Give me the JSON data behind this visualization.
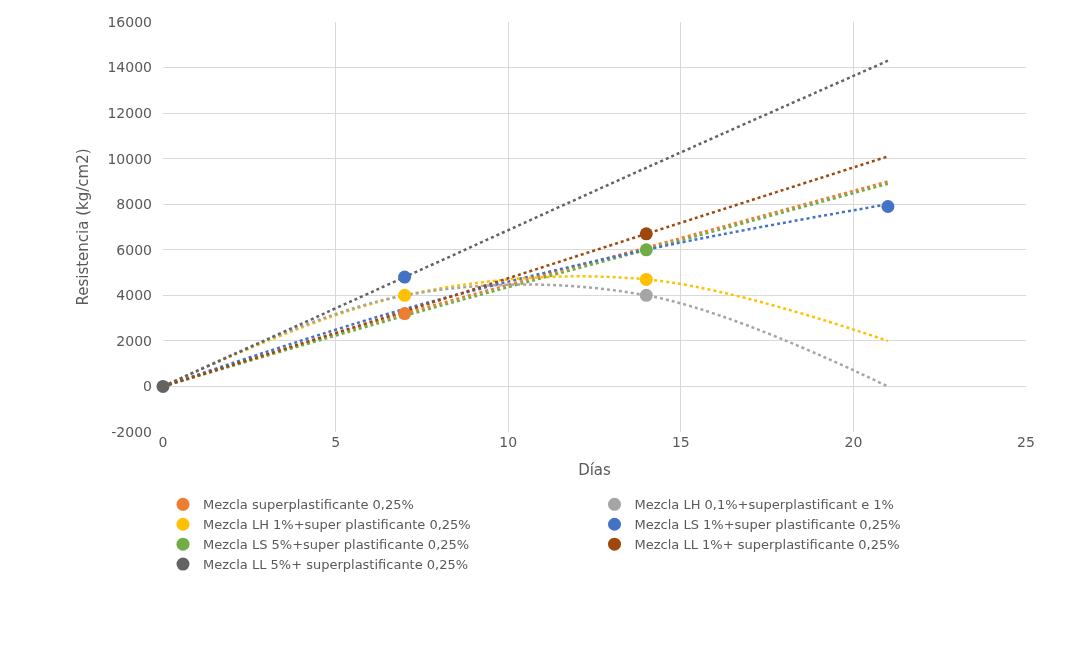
{
  "chart_data": {
    "type": "scatter",
    "xlabel": "Días",
    "ylabel": "Resistencia (kg/cm2)",
    "xlim": [
      0,
      25
    ],
    "xticks": [
      0,
      5,
      10,
      15,
      20,
      25
    ],
    "ylim": [
      -2000,
      16000
    ],
    "yticks": [
      -2000,
      0,
      2000,
      4000,
      6000,
      8000,
      10000,
      12000,
      14000,
      16000
    ],
    "grid": true,
    "legend": "bottom",
    "marker": "circle",
    "series": [
      {
        "type": "line",
        "line_style": "dotted",
        "marker": "none",
        "color": "#ed7d31",
        "x": [
          0,
          7,
          14,
          21
        ],
        "values": [
          0,
          3200,
          6100,
          9000
        ]
      },
      {
        "type": "line",
        "line_style": "dotted",
        "marker": "none",
        "color": "#70ad47",
        "x": [
          0,
          7,
          14,
          21
        ],
        "values": [
          0,
          3100,
          6000,
          8900
        ]
      },
      {
        "type": "line",
        "line_style": "dotted",
        "marker": "none",
        "color": "#4472c4",
        "x": [
          0,
          7,
          14,
          21
        ],
        "values": [
          0,
          3400,
          6000,
          8000
        ]
      },
      {
        "type": "line",
        "line_style": "dotted",
        "marker": "none",
        "color": "#ffc000",
        "x": [
          0,
          7,
          14,
          21
        ],
        "values": [
          0,
          4000,
          4700,
          2000
        ]
      },
      {
        "type": "line",
        "line_style": "dotted",
        "marker": "none",
        "color": "#a5a5a5",
        "x": [
          0,
          7,
          14,
          21
        ],
        "values": [
          0,
          4000,
          4000,
          0
        ]
      },
      {
        "type": "line",
        "line_style": "dotted",
        "marker": "none",
        "color": "#9e480e",
        "x": [
          0,
          7,
          14,
          21
        ],
        "values": [
          0,
          3300,
          6700,
          10100
        ]
      },
      {
        "type": "line",
        "line_style": "dotted",
        "marker": "none",
        "color": "#636363",
        "x": [
          0,
          7,
          14,
          21
        ],
        "values": [
          0,
          4800,
          9600,
          14300
        ]
      },
      {
        "name": "Mezcla superplastificante 0,25%",
        "color": "#ed7d31",
        "x": [
          7
        ],
        "values": [
          3200
        ]
      },
      {
        "name": "Mezcla LH 0,1%+superplastificant e 1%",
        "color": "#a5a5a5",
        "x": [
          14
        ],
        "values": [
          4000
        ]
      },
      {
        "name": "Mezcla LH 1%+super plastificante 0,25%",
        "color": "#ffc000",
        "x": [
          7,
          14
        ],
        "values": [
          4000,
          4700
        ]
      },
      {
        "name": "Mezcla LS 1%+super plastificante 0,25%",
        "color": "#4472c4",
        "x": [
          7,
          21
        ],
        "values": [
          4800,
          7900
        ]
      },
      {
        "name": "Mezcla LS 5%+super plastificante 0,25%",
        "color": "#70ad47",
        "x": [
          14
        ],
        "values": [
          6000
        ]
      },
      {
        "name": "Mezcla LL 1%+ superplastificante 0,25%",
        "color": "#9e480e",
        "x": [
          14
        ],
        "values": [
          6700
        ]
      },
      {
        "name": "Mezcla LL 5%+ superplastificante 0,25%",
        "color": "#636363",
        "x": [
          0
        ],
        "values": [
          0
        ]
      }
    ]
  }
}
